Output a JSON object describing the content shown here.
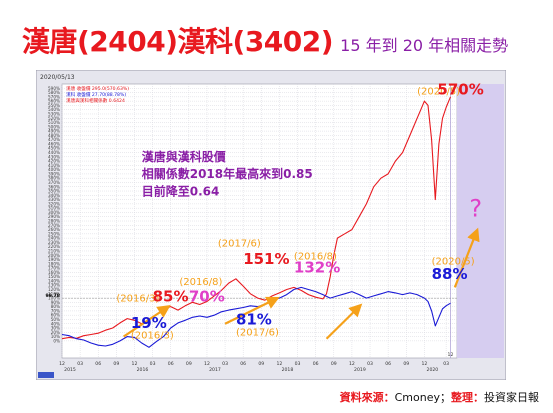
{
  "title": {
    "main": "漢唐(2404)漢科(3402)",
    "sub": "15 年到 20 年相關走勢"
  },
  "source": {
    "label1": "資料來源：",
    "value1": "Cmoney；",
    "label2": "整理：",
    "value2": "投資家日報"
  },
  "colors": {
    "hantang": "#e8191f",
    "hanke": "#1a1ad6",
    "arrow": "#f5a11a",
    "purple": "#8a1fa6",
    "pink": "#e040c8",
    "plot_bg": "#ffffff",
    "frame_bg": "#e6e6ee",
    "right_band": "#d6cdf0"
  },
  "chart_data": {
    "type": "line",
    "header_date": "2020/05/13",
    "legend": [
      {
        "series": "hantang",
        "text": "漢唐 收盤價 295.0(570.63%)"
      },
      {
        "series": "hanke",
        "text": "漢科 收盤價 27.70(88.78%)"
      },
      {
        "series": "corr",
        "text": "漢唐與漢科相關係數 0.6424"
      }
    ],
    "ylim": [
      -40,
      600
    ],
    "yticks": [
      0,
      10,
      20,
      30,
      40,
      50,
      60,
      70,
      80,
      90,
      100,
      110,
      120,
      130,
      140,
      150,
      160,
      170,
      180,
      190,
      200,
      210,
      220,
      230,
      240,
      250,
      260,
      270,
      280,
      290,
      300,
      310,
      320,
      330,
      340,
      350,
      360,
      370,
      380,
      390,
      400,
      410,
      420,
      430,
      440,
      450,
      460,
      470,
      480,
      490,
      500,
      510,
      520,
      530,
      540,
      550,
      560,
      570,
      580,
      590
    ],
    "ytick_labels": [
      "0%",
      "10%",
      "20%",
      "30%",
      "40%",
      "50%",
      "60%",
      "70%",
      "80%",
      "90%",
      "100%",
      "110%",
      "120%",
      "130%",
      "140%",
      "150%",
      "160%",
      "170%",
      "180%",
      "190%",
      "200%",
      "210%",
      "220%",
      "230%",
      "240%",
      "250%",
      "260%",
      "270%",
      "280%",
      "290%",
      "300%",
      "310%",
      "320%",
      "330%",
      "340%",
      "350%",
      "360%",
      "370%",
      "380%",
      "390%",
      "400%",
      "410%",
      "420%",
      "430%",
      "440%",
      "450%",
      "460%",
      "470%",
      "480%",
      "490%",
      "500%",
      "510%",
      "520%",
      "530%",
      "540%",
      "550%",
      "560%",
      "570%",
      "580%",
      "590%"
    ],
    "ylabel_step": 30,
    "xlim": [
      2015.0,
      2020.45
    ],
    "xticks": [
      {
        "x": 2015.0,
        "m": "12",
        "y": "2015"
      },
      {
        "x": 2015.25,
        "m": "03",
        "y": ""
      },
      {
        "x": 2015.5,
        "m": "06",
        "y": ""
      },
      {
        "x": 2015.75,
        "m": "09",
        "y": ""
      },
      {
        "x": 2016.0,
        "m": "12",
        "y": "2016"
      },
      {
        "x": 2016.25,
        "m": "03",
        "y": ""
      },
      {
        "x": 2016.5,
        "m": "06",
        "y": ""
      },
      {
        "x": 2016.75,
        "m": "09",
        "y": ""
      },
      {
        "x": 2017.0,
        "m": "12",
        "y": "2017"
      },
      {
        "x": 2017.25,
        "m": "03",
        "y": ""
      },
      {
        "x": 2017.5,
        "m": "06",
        "y": ""
      },
      {
        "x": 2017.75,
        "m": "09",
        "y": ""
      },
      {
        "x": 2018.0,
        "m": "12",
        "y": "2018"
      },
      {
        "x": 2018.25,
        "m": "03",
        "y": ""
      },
      {
        "x": 2018.5,
        "m": "06",
        "y": ""
      },
      {
        "x": 2018.75,
        "m": "09",
        "y": ""
      },
      {
        "x": 2019.0,
        "m": "12",
        "y": "2019"
      },
      {
        "x": 2019.25,
        "m": "03",
        "y": ""
      },
      {
        "x": 2019.5,
        "m": "06",
        "y": ""
      },
      {
        "x": 2019.75,
        "m": "09",
        "y": ""
      },
      {
        "x": 2020.0,
        "m": "12",
        "y": "2020"
      },
      {
        "x": 2020.3,
        "m": "03",
        "y": ""
      }
    ],
    "current_x_marker": {
      "x": 2020.36,
      "label": "12"
    },
    "baseline_value": 99.78,
    "baseline_label": "99.78",
    "series": [
      {
        "key": "hantang",
        "values": [
          [
            2015.0,
            5
          ],
          [
            2015.1,
            8
          ],
          [
            2015.2,
            6
          ],
          [
            2015.3,
            12
          ],
          [
            2015.4,
            15
          ],
          [
            2015.5,
            18
          ],
          [
            2015.6,
            25
          ],
          [
            2015.7,
            30
          ],
          [
            2015.8,
            42
          ],
          [
            2015.9,
            52
          ],
          [
            2016.0,
            48
          ],
          [
            2016.1,
            40
          ],
          [
            2016.2,
            50
          ],
          [
            2016.3,
            60
          ],
          [
            2016.4,
            75
          ],
          [
            2016.5,
            80
          ],
          [
            2016.6,
            72
          ],
          [
            2016.7,
            82
          ],
          [
            2016.8,
            90
          ],
          [
            2016.9,
            85
          ],
          [
            2017.0,
            92
          ],
          [
            2017.1,
            105
          ],
          [
            2017.2,
            118
          ],
          [
            2017.3,
            135
          ],
          [
            2017.4,
            145
          ],
          [
            2017.5,
            128
          ],
          [
            2017.6,
            110
          ],
          [
            2017.7,
            100
          ],
          [
            2017.8,
            95
          ],
          [
            2017.9,
            105
          ],
          [
            2018.0,
            112
          ],
          [
            2018.1,
            120
          ],
          [
            2018.2,
            125
          ],
          [
            2018.3,
            118
          ],
          [
            2018.4,
            108
          ],
          [
            2018.5,
            102
          ],
          [
            2018.6,
            98
          ],
          [
            2018.65,
            110
          ],
          [
            2018.7,
            150
          ],
          [
            2018.75,
            200
          ],
          [
            2018.8,
            240
          ],
          [
            2018.9,
            250
          ],
          [
            2019.0,
            260
          ],
          [
            2019.1,
            290
          ],
          [
            2019.2,
            320
          ],
          [
            2019.3,
            360
          ],
          [
            2019.4,
            380
          ],
          [
            2019.5,
            390
          ],
          [
            2019.6,
            420
          ],
          [
            2019.7,
            440
          ],
          [
            2019.8,
            480
          ],
          [
            2019.9,
            520
          ],
          [
            2019.95,
            540
          ],
          [
            2020.0,
            560
          ],
          [
            2020.05,
            550
          ],
          [
            2020.1,
            470
          ],
          [
            2020.15,
            330
          ],
          [
            2020.2,
            460
          ],
          [
            2020.25,
            520
          ],
          [
            2020.3,
            545
          ],
          [
            2020.36,
            570
          ]
        ]
      },
      {
        "key": "hanke",
        "values": [
          [
            2015.0,
            15
          ],
          [
            2015.1,
            12
          ],
          [
            2015.2,
            5
          ],
          [
            2015.3,
            2
          ],
          [
            2015.4,
            -5
          ],
          [
            2015.5,
            -10
          ],
          [
            2015.6,
            -12
          ],
          [
            2015.7,
            -8
          ],
          [
            2015.8,
            0
          ],
          [
            2015.9,
            10
          ],
          [
            2016.0,
            8
          ],
          [
            2016.1,
            -5
          ],
          [
            2016.2,
            -15
          ],
          [
            2016.3,
            -2
          ],
          [
            2016.4,
            10
          ],
          [
            2016.5,
            30
          ],
          [
            2016.6,
            42
          ],
          [
            2016.7,
            48
          ],
          [
            2016.8,
            55
          ],
          [
            2016.9,
            58
          ],
          [
            2017.0,
            55
          ],
          [
            2017.1,
            60
          ],
          [
            2017.2,
            68
          ],
          [
            2017.3,
            72
          ],
          [
            2017.4,
            75
          ],
          [
            2017.5,
            78
          ],
          [
            2017.6,
            82
          ],
          [
            2017.7,
            80
          ],
          [
            2017.8,
            85
          ],
          [
            2017.9,
            95
          ],
          [
            2018.0,
            100
          ],
          [
            2018.1,
            108
          ],
          [
            2018.2,
            120
          ],
          [
            2018.3,
            125
          ],
          [
            2018.4,
            120
          ],
          [
            2018.5,
            115
          ],
          [
            2018.6,
            108
          ],
          [
            2018.7,
            100
          ],
          [
            2018.8,
            105
          ],
          [
            2018.9,
            110
          ],
          [
            2019.0,
            115
          ],
          [
            2019.1,
            108
          ],
          [
            2019.2,
            100
          ],
          [
            2019.3,
            105
          ],
          [
            2019.4,
            110
          ],
          [
            2019.5,
            115
          ],
          [
            2019.6,
            112
          ],
          [
            2019.7,
            108
          ],
          [
            2019.8,
            112
          ],
          [
            2019.9,
            108
          ],
          [
            2020.0,
            100
          ],
          [
            2020.05,
            92
          ],
          [
            2020.1,
            70
          ],
          [
            2020.15,
            35
          ],
          [
            2020.2,
            55
          ],
          [
            2020.25,
            75
          ],
          [
            2020.3,
            82
          ],
          [
            2020.36,
            88
          ]
        ]
      }
    ],
    "annotations": [
      {
        "id": "note1",
        "text": "漢唐與漢科股價",
        "x": 2016.1,
        "y": 420,
        "color": "#8a1fa6",
        "size": 12,
        "bold": true
      },
      {
        "id": "note2",
        "text": "相關係數2018年最高來到0.85",
        "x": 2016.1,
        "y": 380,
        "color": "#8a1fa6",
        "size": 12,
        "bold": true
      },
      {
        "id": "note3",
        "text": "目前降至0.64",
        "x": 2016.1,
        "y": 340,
        "color": "#8a1fa6",
        "size": 12,
        "bold": true
      },
      {
        "id": "d201603a",
        "text": "(2016/3)",
        "x": 2015.75,
        "y": 92,
        "color": "#f5a11a",
        "size": 10,
        "bold": false
      },
      {
        "id": "p85",
        "text": "85%",
        "x": 2016.25,
        "y": 92,
        "color": "#e8191f",
        "size": 15,
        "bold": true
      },
      {
        "id": "p70",
        "text": "70%",
        "x": 2016.75,
        "y": 92,
        "color": "#e040c8",
        "size": 15,
        "bold": true
      },
      {
        "id": "d201608a",
        "text": "(2016/8)",
        "x": 2016.62,
        "y": 130,
        "color": "#f5a11a",
        "size": 10,
        "bold": false
      },
      {
        "id": "d201706a",
        "text": "(2017/6)",
        "x": 2017.15,
        "y": 220,
        "color": "#f5a11a",
        "size": 10,
        "bold": false
      },
      {
        "id": "p151",
        "text": "151%",
        "x": 2017.5,
        "y": 180,
        "color": "#e8191f",
        "size": 15,
        "bold": true
      },
      {
        "id": "d201608b",
        "text": "(2016/8)",
        "x": 2018.2,
        "y": 190,
        "color": "#f5a11a",
        "size": 10,
        "bold": false
      },
      {
        "id": "p132",
        "text": "132%",
        "x": 2018.2,
        "y": 160,
        "color": "#e040c8",
        "size": 15,
        "bold": true
      },
      {
        "id": "p19",
        "text": "19%",
        "x": 2015.95,
        "y": 30,
        "color": "#1a1ad6",
        "size": 15,
        "bold": true
      },
      {
        "id": "d201603b",
        "text": "(2016/3)",
        "x": 2015.95,
        "y": 5,
        "color": "#f5a11a",
        "size": 10,
        "bold": false
      },
      {
        "id": "p81",
        "text": "81%",
        "x": 2017.4,
        "y": 38,
        "color": "#1a1ad6",
        "size": 15,
        "bold": true
      },
      {
        "id": "d201706b",
        "text": "(2017/6)",
        "x": 2017.4,
        "y": 12,
        "color": "#f5a11a",
        "size": 10,
        "bold": false
      },
      {
        "id": "d202005a",
        "text": "(2020/5)",
        "x": 2019.9,
        "y": 575,
        "color": "#f5a11a",
        "size": 10,
        "bold": false
      },
      {
        "id": "p570",
        "text": "570%",
        "x": 2020.18,
        "y": 575,
        "color": "#e8191f",
        "size": 15,
        "bold": true
      },
      {
        "id": "d202005b",
        "text": "(2020/5)",
        "x": 2020.1,
        "y": 178,
        "color": "#f5a11a",
        "size": 10,
        "bold": false
      },
      {
        "id": "p88",
        "text": "88%",
        "x": 2020.1,
        "y": 145,
        "color": "#1a1ad6",
        "size": 15,
        "bold": true
      },
      {
        "id": "qmark",
        "text": "?",
        "x": 2020.62,
        "y": 290,
        "color": "#e040c8",
        "size": 24,
        "bold": false
      }
    ],
    "arrows": [
      {
        "from": [
          2015.85,
          10
        ],
        "to": [
          2016.45,
          78
        ]
      },
      {
        "from": [
          2017.25,
          40
        ],
        "to": [
          2017.95,
          98
        ]
      },
      {
        "from": [
          2018.65,
          5
        ],
        "to": [
          2019.1,
          80
        ]
      },
      {
        "from": [
          2020.42,
          125
        ],
        "to": [
          2020.72,
          255
        ]
      }
    ]
  }
}
